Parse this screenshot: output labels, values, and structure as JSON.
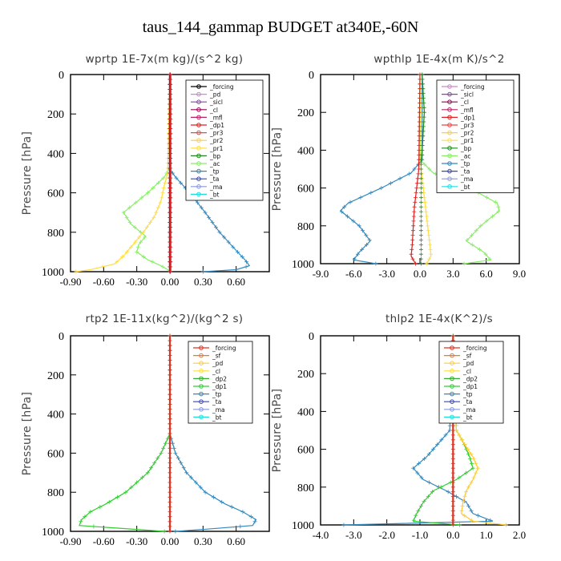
{
  "suptitle": "taus_144_gammap  BUDGET at340E,-60N",
  "colors": {
    "forcing": "#000000",
    "pd": "#cc88cc",
    "sicl": "#8844aa",
    "cl": "#990055",
    "mfl": "#bb2266",
    "dp1": "#dd2222",
    "dp1_alt": "#33cc33",
    "dp2": "#33aa33",
    "pr3": "#ee4444",
    "pr2": "#ffcc33",
    "pr1": "#ffdd44",
    "bp": "#228822",
    "ac": "#88ee66",
    "tp": "#3388bb",
    "ta": "#3344cc",
    "ma": "#8899dd",
    "bt": "#22dddd",
    "sf": "#ee7722",
    "forcing_red": "#dd3322"
  },
  "chart_data": [
    {
      "type": "line",
      "title": "wprtp   1E-7x(m kg)/(s^2 kg)",
      "ylabel": "Pressure [hPa]",
      "xticks": [
        "-0.90",
        "-0.60",
        "-0.30",
        "0.00",
        "0.30",
        "0.60"
      ],
      "xtick_values": [
        -0.9,
        -0.6,
        -0.3,
        0.0,
        0.3,
        0.6
      ],
      "xlim": [
        -0.9,
        0.9
      ],
      "yticks": [
        "0",
        "200",
        "400",
        "600",
        "800",
        "1000"
      ],
      "ylim": [
        1000,
        0
      ],
      "legend": [
        "_forcing",
        "_pd",
        "_sicl",
        "_cl",
        "_mfl",
        "_dp1",
        "_pr3",
        "_pr2",
        "_pr1",
        "_bp",
        "_ac",
        "_tp",
        "_ta",
        "_ma",
        "_bt"
      ],
      "legend_colors": [
        "forcing",
        "pd",
        "sicl",
        "cl",
        "mfl",
        "dp1",
        "pr3",
        "pr2",
        "pr1",
        "bp",
        "ac",
        "tp",
        "ta",
        "ma",
        "bt"
      ],
      "series": [
        {
          "name": "_tp",
          "color": "tp",
          "p": [
            0,
            480,
            520,
            600,
            700,
            800,
            880,
            940,
            970,
            990,
            1000
          ],
          "x": [
            0,
            0,
            0.05,
            0.18,
            0.32,
            0.45,
            0.58,
            0.68,
            0.72,
            0.6,
            0.3
          ]
        },
        {
          "name": "_ac",
          "color": "ac",
          "p": [
            0,
            470,
            520,
            600,
            700,
            760,
            820,
            860,
            900,
            940,
            970,
            990,
            1000
          ],
          "x": [
            0,
            0,
            -0.05,
            -0.2,
            -0.42,
            -0.35,
            -0.22,
            -0.28,
            -0.3,
            -0.2,
            -0.08,
            -0.02,
            0
          ]
        },
        {
          "name": "_pr1",
          "color": "pr1",
          "p": [
            0,
            500,
            560,
            640,
            720,
            800,
            860,
            920,
            960,
            990,
            1000
          ],
          "x": [
            0,
            -0.02,
            -0.05,
            -0.08,
            -0.14,
            -0.24,
            -0.33,
            -0.42,
            -0.5,
            -0.72,
            -0.85
          ]
        },
        {
          "name": "_forcing",
          "color": "forcing",
          "p": [
            0,
            1000
          ],
          "x": [
            0,
            0
          ]
        },
        {
          "name": "_cl",
          "color": "cl",
          "p": [
            0,
            1000
          ],
          "x": [
            0,
            0
          ]
        },
        {
          "name": "_dp1",
          "color": "dp1",
          "p": [
            0,
            1000
          ],
          "x": [
            0.005,
            0.005
          ]
        }
      ]
    },
    {
      "type": "line",
      "title": "wpthlp   1E-4x(m K)/s^2",
      "ylabel": "Pressure [hPa]",
      "xticks": [
        "-9.0",
        "-6.0",
        "-3.0",
        "0.0",
        "3.0",
        "6.0",
        "9.0"
      ],
      "xtick_values": [
        -9,
        -6,
        -3,
        0,
        3,
        6,
        9
      ],
      "xlim": [
        -9,
        9
      ],
      "yticks": [
        "0",
        "200",
        "400",
        "600",
        "800",
        "1000"
      ],
      "ylim": [
        1000,
        0
      ],
      "legend": [
        "_forcing",
        "_sicl",
        "_cl",
        "_mfl",
        "_dp1",
        "_pr3",
        "_pr2",
        "_pr1",
        "_bp",
        "_ac",
        "_tp",
        "_ta",
        "_ma",
        "_bt"
      ],
      "legend_colors": [
        "pd",
        "sicl",
        "cl",
        "mfl",
        "dp1",
        "pr3",
        "pr2",
        "pr1",
        "bp",
        "ac",
        "tp",
        "ta",
        "ma",
        "bt"
      ],
      "series": [
        {
          "name": "_tp",
          "color": "tp",
          "p": [
            0,
            450,
            520,
            600,
            680,
            720,
            800,
            880,
            940,
            980,
            1000
          ],
          "x": [
            0.2,
            0.2,
            -0.8,
            -3.5,
            -6.5,
            -7.2,
            -5.5,
            -4.5,
            -5.5,
            -6.0,
            -4.0
          ]
        },
        {
          "name": "_ac",
          "color": "ac",
          "p": [
            0,
            450,
            520,
            600,
            680,
            720,
            800,
            880,
            940,
            980,
            1000
          ],
          "x": [
            0,
            0,
            1.2,
            4.5,
            7.0,
            7.2,
            5.5,
            4.2,
            5.8,
            6.4,
            4.0
          ]
        },
        {
          "name": "_pr1",
          "color": "pr1",
          "p": [
            0,
            500,
            600,
            700,
            800,
            900,
            960,
            1000
          ],
          "x": [
            0,
            0.1,
            0.3,
            0.5,
            0.7,
            0.9,
            1.0,
            0.6
          ]
        },
        {
          "name": "_dp1",
          "color": "dp1",
          "p": [
            0,
            500,
            600,
            700,
            800,
            900,
            960,
            1000
          ],
          "x": [
            0,
            -0.1,
            -0.3,
            -0.5,
            -0.6,
            -0.7,
            -0.8,
            -0.4
          ]
        },
        {
          "name": "_bp",
          "color": "bp",
          "p": [
            0,
            100,
            200,
            300,
            400,
            470
          ],
          "x": [
            0.2,
            0.3,
            0.4,
            0.3,
            0.2,
            0.1
          ]
        }
      ]
    },
    {
      "type": "line",
      "title": "rtp2   1E-11x(kg^2)/(kg^2 s)",
      "ylabel": "Pressure [hPa]",
      "xticks": [
        "-0.90",
        "-0.60",
        "-0.30",
        "0.00",
        "0.30",
        "0.60"
      ],
      "xtick_values": [
        -0.9,
        -0.6,
        -0.3,
        0.0,
        0.3,
        0.6
      ],
      "xlim": [
        -0.9,
        0.9
      ],
      "yticks": [
        "0",
        "200",
        "400",
        "600",
        "800",
        "1000"
      ],
      "ylim": [
        1000,
        0
      ],
      "legend": [
        "_forcing",
        "_sf",
        "_pd",
        "_cl",
        "_dp2",
        "_dp1",
        "_tp",
        "_ta",
        "_ma",
        "_bt"
      ],
      "legend_colors": [
        "forcing_red",
        "sf",
        "pr2",
        "pr1",
        "dp2",
        "dp1_alt",
        "tp",
        "ta",
        "ma",
        "bt"
      ],
      "series": [
        {
          "name": "_tp",
          "color": "tp",
          "p": [
            0,
            500,
            600,
            700,
            800,
            860,
            900,
            940,
            970,
            990,
            1000
          ],
          "x": [
            0,
            0,
            0.05,
            0.15,
            0.32,
            0.5,
            0.66,
            0.78,
            0.75,
            0.3,
            0.05
          ]
        },
        {
          "name": "_dp1",
          "color": "dp1_alt",
          "p": [
            0,
            500,
            600,
            700,
            800,
            860,
            900,
            940,
            970,
            990,
            1000
          ],
          "x": [
            0,
            0,
            -0.08,
            -0.2,
            -0.4,
            -0.58,
            -0.72,
            -0.8,
            -0.82,
            -0.3,
            -0.05
          ]
        },
        {
          "name": "_forcing",
          "color": "forcing_red",
          "p": [
            0,
            1000
          ],
          "x": [
            0,
            0
          ]
        }
      ]
    },
    {
      "type": "line",
      "title": "thlp2   1E-4x(K^2)/s",
      "ylabel": "Pressure [hPa]",
      "xticks": [
        "-4.0",
        "-3.0",
        "-2.0",
        "-1.0",
        "0.0",
        "1.0",
        "2.0"
      ],
      "xtick_values": [
        -4,
        -3,
        -2,
        -1,
        0,
        1,
        2
      ],
      "xlim": [
        -4,
        2
      ],
      "yticks": [
        "0",
        "200",
        "400",
        "600",
        "800",
        "1000"
      ],
      "ylim": [
        1000,
        0
      ],
      "legend": [
        "_forcing",
        "_sf",
        "_pd",
        "_cl",
        "_dp2",
        "_dp1",
        "_tp",
        "_ta",
        "_ma",
        "_bt"
      ],
      "legend_colors": [
        "forcing_red",
        "sf",
        "pr2",
        "pr1",
        "dp2",
        "dp1_alt",
        "tp",
        "ta",
        "ma",
        "bt"
      ],
      "series": [
        {
          "name": "_tp",
          "color": "tp",
          "p": [
            0,
            500,
            560,
            640,
            700,
            760,
            820,
            880,
            940,
            980,
            1000
          ],
          "x": [
            0,
            -0.1,
            -0.4,
            -0.8,
            -1.2,
            -0.9,
            -0.2,
            0.4,
            0.6,
            1.2,
            -3.3
          ]
        },
        {
          "name": "_dp1",
          "color": "dp1_alt",
          "p": [
            0,
            500,
            560,
            640,
            700,
            760,
            820,
            880,
            940,
            980,
            1000
          ],
          "x": [
            0,
            0.1,
            0.3,
            0.5,
            0.6,
            0.1,
            -0.6,
            -0.9,
            -1.1,
            -1.2,
            0.2
          ]
        },
        {
          "name": "_pd",
          "color": "pr2",
          "p": [
            0,
            500,
            560,
            640,
            700,
            760,
            820,
            880,
            940,
            980,
            1000
          ],
          "x": [
            0,
            0.1,
            0.3,
            0.6,
            0.75,
            0.6,
            0.4,
            0.3,
            0.25,
            0.6,
            1.6
          ]
        },
        {
          "name": "_forcing",
          "color": "forcing_red",
          "p": [
            0,
            1000
          ],
          "x": [
            0,
            0
          ]
        }
      ]
    }
  ]
}
